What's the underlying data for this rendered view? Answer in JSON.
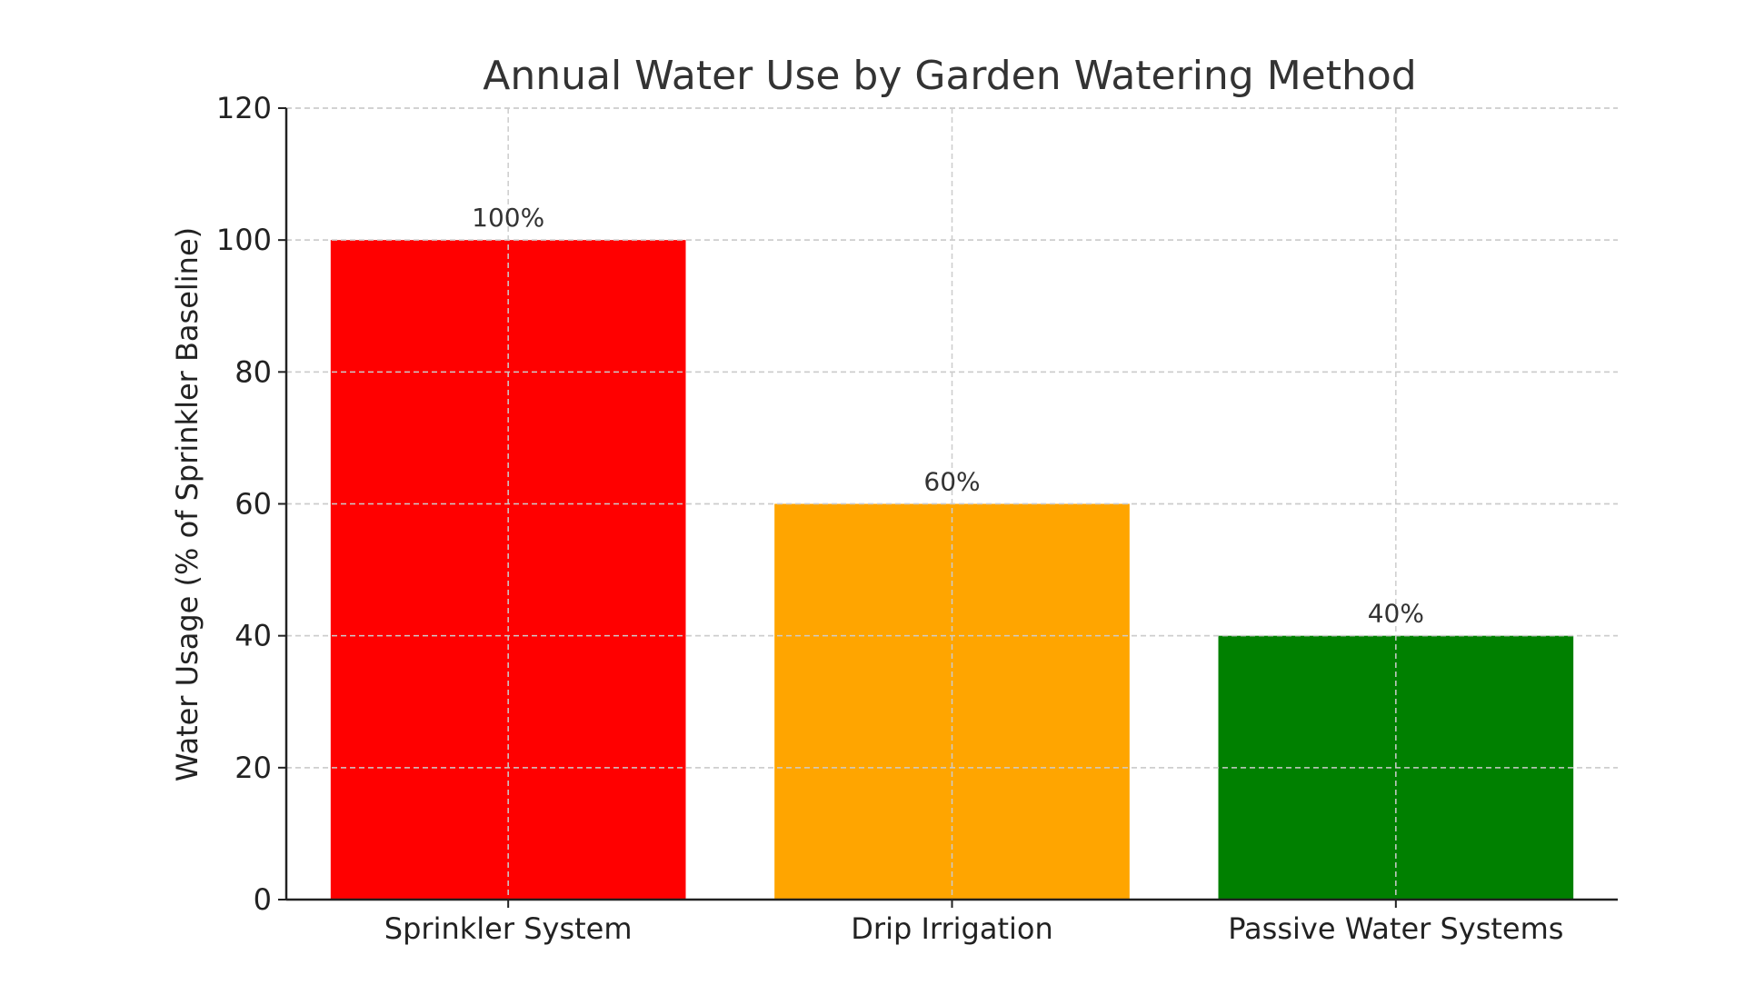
{
  "chart_data": {
    "type": "bar",
    "title": "Annual Water Use by Garden Watering Method",
    "xlabel": "",
    "ylabel": "Water Usage (% of Sprinkler Baseline)",
    "categories": [
      "Sprinkler System",
      "Drip Irrigation",
      "Passive Water Systems"
    ],
    "values": [
      100,
      60,
      40
    ],
    "data_labels": [
      "100%",
      "60%",
      "40%"
    ],
    "colors": [
      "#ff0000",
      "#ffa500",
      "#008000"
    ],
    "ylim": [
      0,
      120
    ],
    "yticks": [
      0,
      20,
      40,
      60,
      80,
      100,
      120
    ],
    "grid": true,
    "legend": "none"
  }
}
